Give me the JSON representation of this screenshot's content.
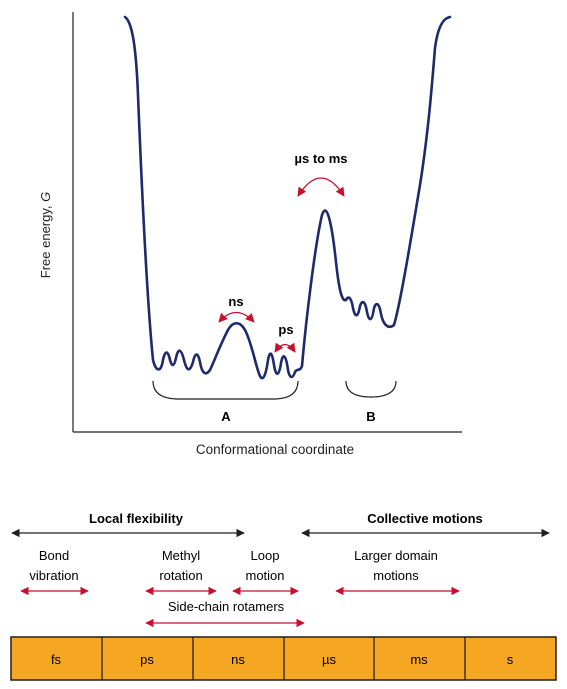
{
  "energy_landscape": {
    "y_axis_label": "Free energy, ",
    "y_axis_symbol": "G",
    "x_axis_label": "Conformational coordinate",
    "transitions": {
      "ns": "ns",
      "ps": "ps",
      "us_ms": "µs to ms"
    },
    "states": {
      "a": "A",
      "b": "B"
    },
    "colors": {
      "curve": "#1f2a6b",
      "arrow": "#c8102e"
    }
  },
  "timescale": {
    "groups": {
      "local": "Local flexibility",
      "collective": "Collective motions"
    },
    "motions": {
      "bond_1": "Bond",
      "bond_2": "vibration",
      "methyl_1": "Methyl",
      "methyl_2": "rotation",
      "loop_1": "Loop",
      "loop_2": "motion",
      "domain_1": "Larger domain",
      "domain_2": "motions",
      "sidechain": "Side-chain rotamers"
    },
    "bar_cells": [
      "fs",
      "ps",
      "ns",
      "µs",
      "ms",
      "s"
    ],
    "colors": {
      "bar_fill": "#f5a623",
      "arrow": "#c8102e"
    }
  }
}
